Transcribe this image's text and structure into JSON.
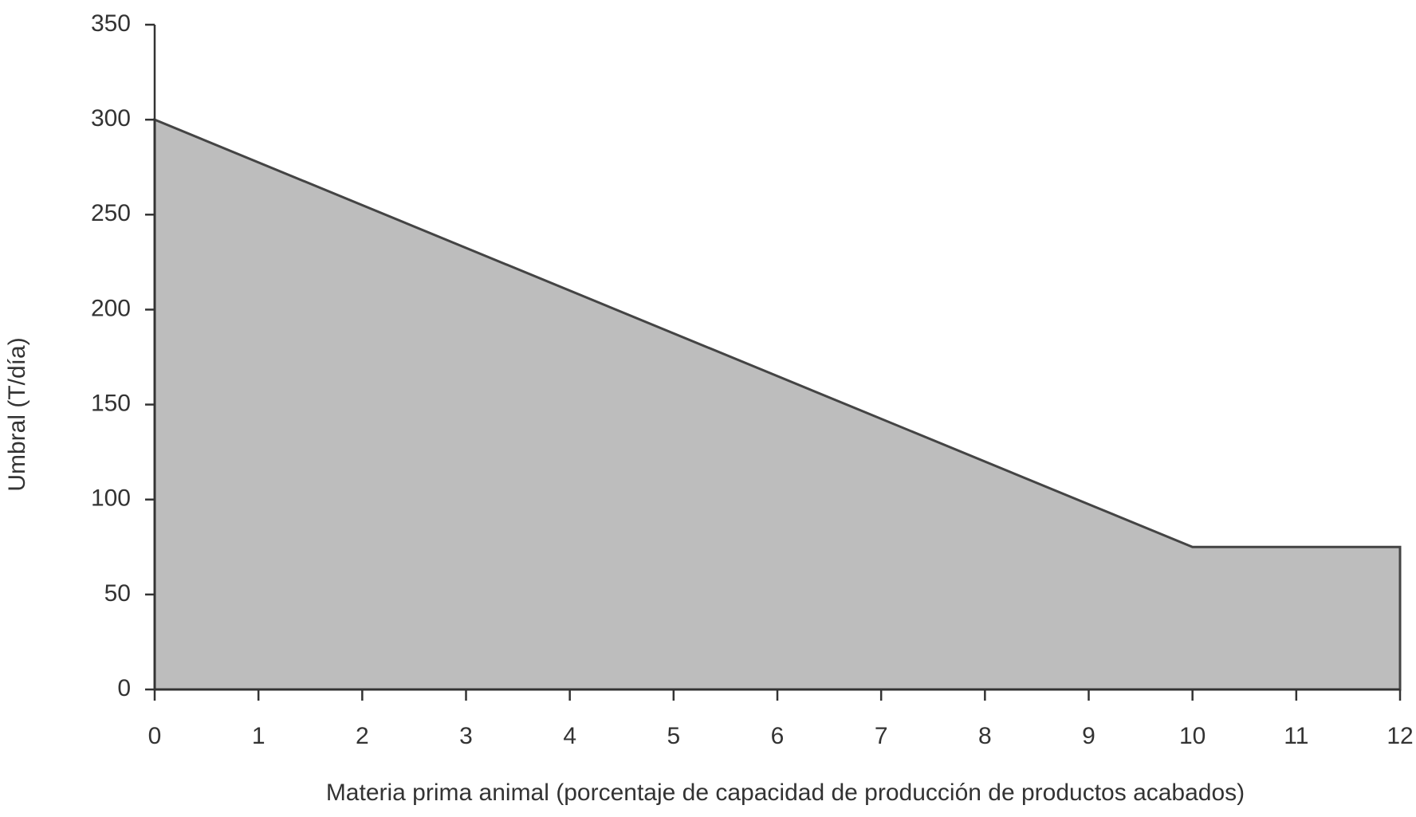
{
  "chart_data": {
    "type": "area",
    "x_label": "Materia prima animal (porcentaje de capacidad de producción de productos acabados)",
    "y_label": "Umbral (T/día)",
    "x": [
      0,
      10,
      12
    ],
    "values": [
      300,
      75,
      75
    ],
    "color": "#bdbdbd",
    "line_color": "#444444",
    "xlim": [
      0,
      12
    ],
    "xticks": [
      0,
      1,
      2,
      3,
      4,
      5,
      6,
      7,
      8,
      9,
      10,
      11,
      12
    ],
    "ylim": [
      0,
      350
    ],
    "yticks": [
      0,
      50,
      100,
      150,
      200,
      250,
      300,
      350
    ],
    "grid": false
  }
}
